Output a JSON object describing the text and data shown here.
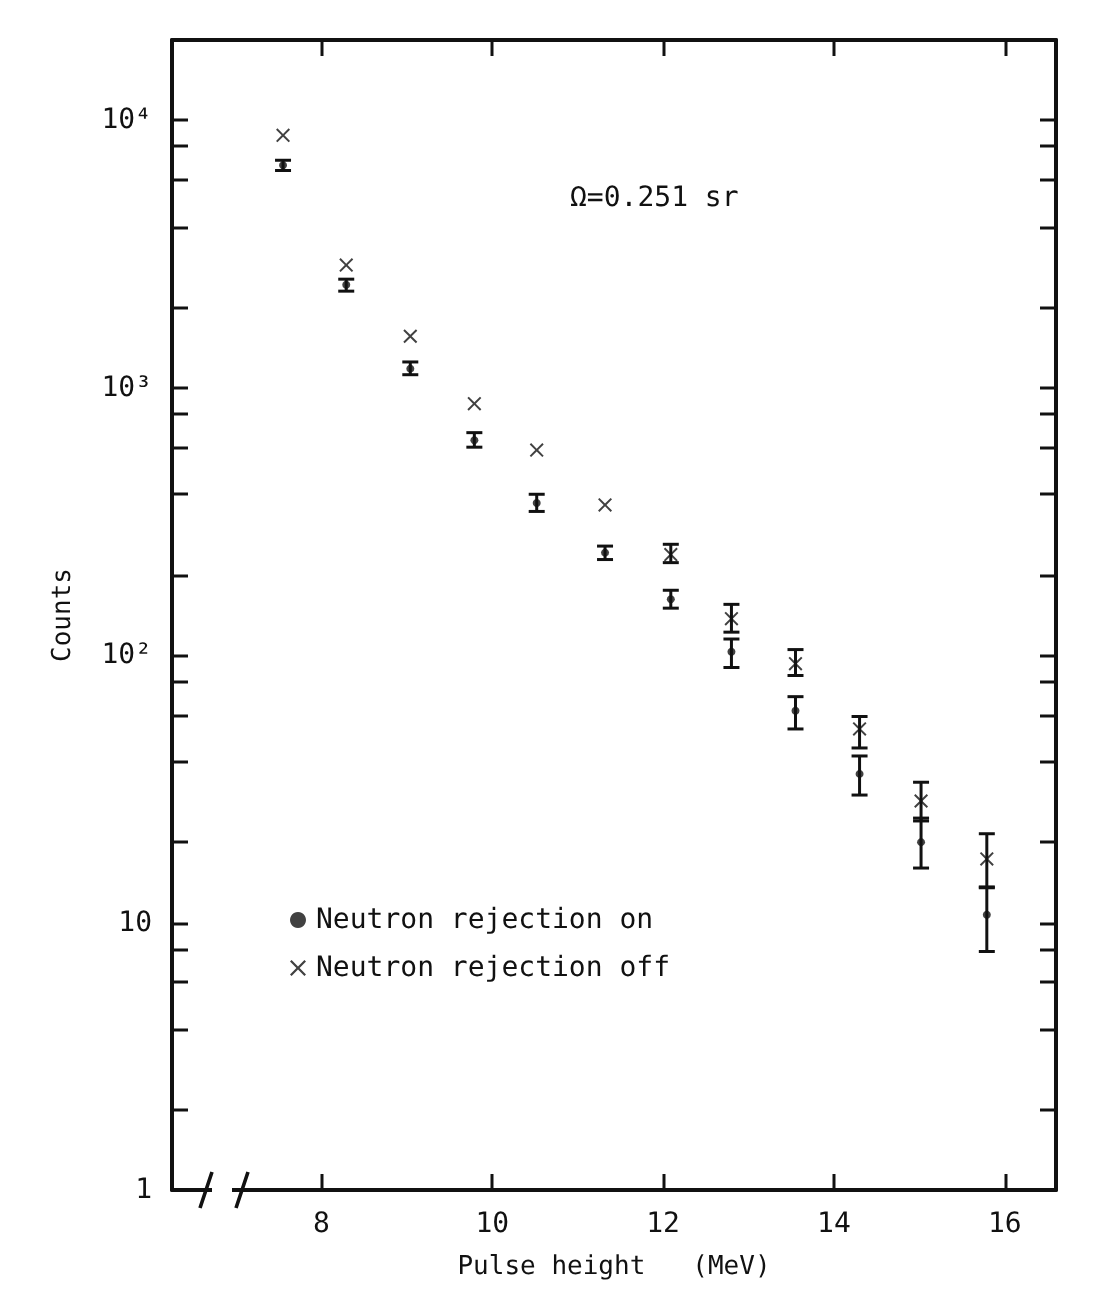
{
  "chart_data": {
    "type": "scatter",
    "xlabel": "Pulse height   (MeV)",
    "ylabel": "Counts",
    "annotations": [
      "Ω=0.251 sr"
    ],
    "x": [
      7.55,
      8.29,
      9.04,
      9.79,
      10.52,
      11.32,
      12.09,
      12.8,
      13.55,
      14.3,
      15.02,
      15.79
    ],
    "series": [
      {
        "name": "Neutron rejection on",
        "color": "#111111",
        "marker": "circle",
        "values": [
          6800,
          2430,
          1180,
          637,
          371,
          242,
          162,
          103,
          62,
          36,
          20,
          10.7
        ],
        "errors": [
          [
            6500,
            7100
          ],
          [
            2300,
            2550
          ],
          [
            1120,
            1250
          ],
          [
            600,
            680
          ],
          [
            345,
            400
          ],
          [
            228,
            256
          ],
          [
            150,
            175
          ],
          [
            90,
            115
          ],
          [
            53,
            70
          ],
          [
            30,
            42
          ],
          [
            16,
            24.6
          ],
          [
            7.8,
            13.6
          ]
        ]
      },
      {
        "name": "Neutron rejection off",
        "color": "#111111",
        "marker": "cross",
        "values": [
          8800,
          2880,
          1560,
          873,
          585,
          365,
          238,
          137,
          93,
          53,
          28.5,
          17.3
        ],
        "errors": [
          null,
          null,
          null,
          null,
          null,
          null,
          [
            222,
            260
          ],
          [
            122,
            155
          ],
          [
            84,
            105
          ],
          [
            45,
            59
          ],
          [
            24,
            33.5
          ],
          [
            13.5,
            21.5
          ]
        ]
      }
    ],
    "xlim": [
      6.25,
      16.6
    ],
    "xticks": [
      8,
      10,
      12,
      14,
      16
    ],
    "ylim": [
      1,
      20000
    ],
    "log": "y",
    "yticks": [
      1,
      {
        "value": 2,
        "label": null
      },
      {
        "value": 4,
        "label": null
      },
      {
        "value": 6,
        "label": null
      },
      {
        "value": 8,
        "label": null
      },
      10,
      {
        "value": 20,
        "label": null
      },
      {
        "value": 40,
        "label": null
      },
      {
        "value": 60,
        "label": null
      },
      {
        "value": 80,
        "label": null
      },
      {
        "value": 100,
        "label": "10²"
      },
      {
        "value": 200,
        "label": null
      },
      {
        "value": 400,
        "label": null
      },
      {
        "value": 600,
        "label": null
      },
      {
        "value": 800,
        "label": null
      },
      {
        "value": 1000,
        "label": "10³"
      },
      {
        "value": 2000,
        "label": null
      },
      {
        "value": 4000,
        "label": null
      },
      {
        "value": 6000,
        "label": null
      },
      {
        "value": 8000,
        "label": null
      },
      {
        "value": 10000,
        "label": "10⁴"
      }
    ],
    "grid": false,
    "legend": "bottom left"
  }
}
